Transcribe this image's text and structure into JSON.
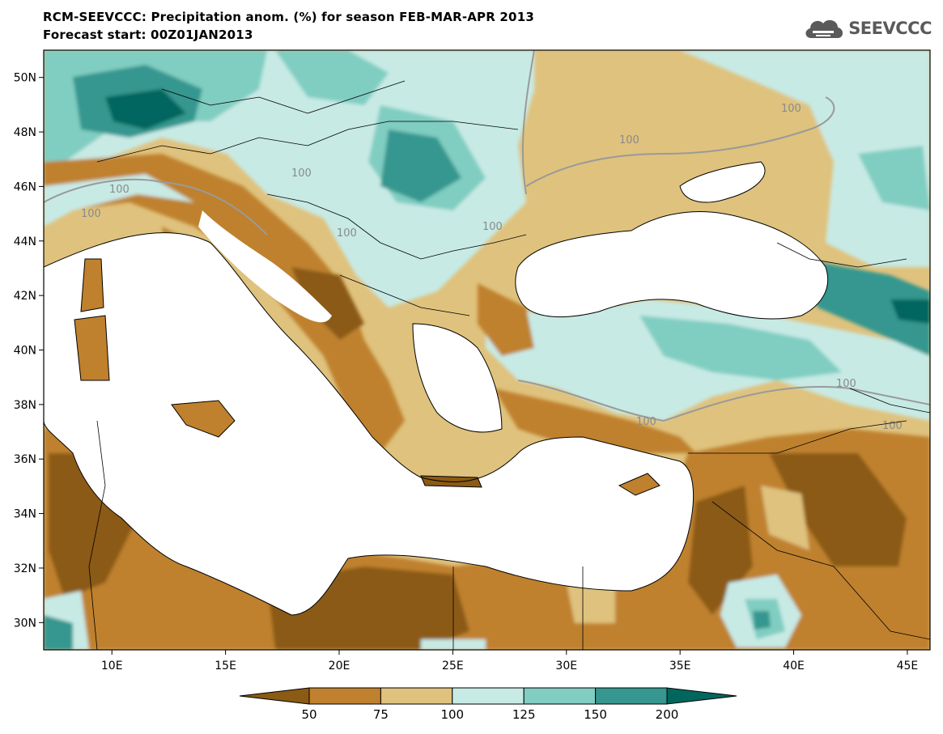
{
  "header": {
    "title_line1": "RCM-SEEVCCC: Precipitation anom. (%) for season FEB-MAR-APR 2013",
    "title_line2": "Forecast start: 00Z01JAN2013",
    "logo_text": "SEEVCCC"
  },
  "map": {
    "lon_range": [
      7,
      46
    ],
    "lat_range": [
      29,
      51
    ],
    "lat_ticks": [
      "50N",
      "48N",
      "46N",
      "44N",
      "42N",
      "40N",
      "38N",
      "36N",
      "34N",
      "32N",
      "30N"
    ],
    "lon_ticks": [
      "10E",
      "15E",
      "20E",
      "25E",
      "30E",
      "35E",
      "40E",
      "45E"
    ],
    "contour_labels": [
      "100",
      "100",
      "100",
      "100",
      "100",
      "100",
      "100",
      "100",
      "100",
      "100"
    ],
    "colors": {
      "below_50": "#8b5a14",
      "50_75": "#bf812d",
      "75_100": "#dfc27d",
      "100_125": "#c7eae5",
      "125_150": "#80cdc1",
      "150_200": "#35978f",
      "above_200": "#01665e",
      "sea": "#ffffff"
    }
  },
  "colorbar": {
    "labels": [
      "50",
      "75",
      "100",
      "125",
      "150",
      "200"
    ],
    "colors": [
      "#8b5a14",
      "#bf812d",
      "#dfc27d",
      "#c7eae5",
      "#80cdc1",
      "#35978f",
      "#01665e"
    ]
  }
}
